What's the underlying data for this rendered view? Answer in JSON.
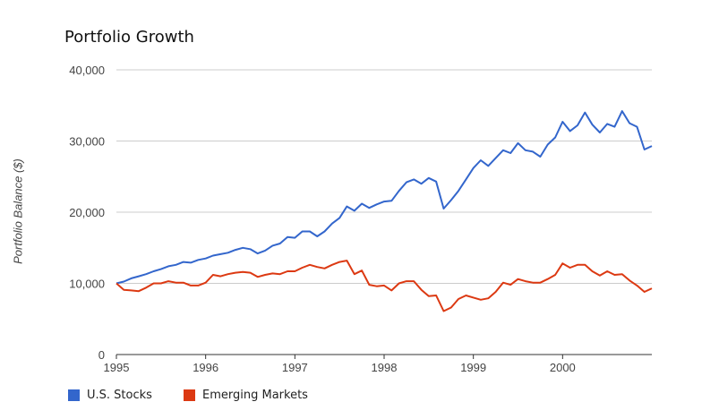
{
  "chart_data": {
    "type": "line",
    "title": "Portfolio Growth",
    "xlabel": "",
    "ylabel": "Portfolio Balance ($)",
    "x_ticks": [
      "1995",
      "1996",
      "1997",
      "1998",
      "1999",
      "2000"
    ],
    "y_ticks": [
      "0",
      "10,000",
      "20,000",
      "30,000",
      "40,000"
    ],
    "xlim": [
      1995,
      2001
    ],
    "ylim": [
      0,
      40000
    ],
    "grid": true,
    "legend_position": "bottom-left",
    "x": [
      1995.0,
      1995.083,
      1995.167,
      1995.25,
      1995.333,
      1995.417,
      1995.5,
      1995.583,
      1995.667,
      1995.75,
      1995.833,
      1995.917,
      1996.0,
      1996.083,
      1996.167,
      1996.25,
      1996.333,
      1996.417,
      1996.5,
      1996.583,
      1996.667,
      1996.75,
      1996.833,
      1996.917,
      1997.0,
      1997.083,
      1997.167,
      1997.25,
      1997.333,
      1997.417,
      1997.5,
      1997.583,
      1997.667,
      1997.75,
      1997.833,
      1997.917,
      1998.0,
      1998.083,
      1998.167,
      1998.25,
      1998.333,
      1998.417,
      1998.5,
      1998.583,
      1998.667,
      1998.75,
      1998.833,
      1998.917,
      1999.0,
      1999.083,
      1999.167,
      1999.25,
      1999.333,
      1999.417,
      1999.5,
      1999.583,
      1999.667,
      1999.75,
      1999.833,
      1999.917,
      2000.0,
      2000.083,
      2000.167,
      2000.25,
      2000.333,
      2000.417,
      2000.5,
      2000.583,
      2000.667,
      2000.75,
      2000.833,
      2000.917,
      2001.0
    ],
    "series": [
      {
        "name": "U.S. Stocks",
        "color": "#3366cc",
        "values": [
          10000,
          10250,
          10700,
          11000,
          11300,
          11700,
          12000,
          12400,
          12600,
          13000,
          12900,
          13300,
          13500,
          13900,
          14100,
          14300,
          14700,
          15000,
          14800,
          14200,
          14600,
          15300,
          15600,
          16500,
          16400,
          17300,
          17300,
          16600,
          17300,
          18400,
          19200,
          20800,
          20200,
          21200,
          20600,
          21100,
          21500,
          21600,
          23000,
          24200,
          24600,
          24000,
          24800,
          24300,
          20500,
          21700,
          23000,
          24600,
          26200,
          27300,
          26500,
          27600,
          28700,
          28300,
          29700,
          28700,
          28500,
          27800,
          29500,
          30500,
          32700,
          31400,
          32200,
          34000,
          32300,
          31200,
          32400,
          32000,
          34200,
          32500,
          32000,
          28800,
          29300
        ]
      },
      {
        "name": "Emerging Markets",
        "color": "#dc3912",
        "values": [
          10000,
          9100,
          9000,
          8900,
          9400,
          10000,
          10000,
          10300,
          10100,
          10100,
          9700,
          9700,
          10100,
          11200,
          11000,
          11300,
          11500,
          11600,
          11500,
          10900,
          11200,
          11400,
          11300,
          11700,
          11700,
          12200,
          12600,
          12300,
          12100,
          12600,
          13000,
          13200,
          11300,
          11800,
          9800,
          9600,
          9700,
          9000,
          10000,
          10300,
          10300,
          9100,
          8200,
          8300,
          6100,
          6600,
          7800,
          8300,
          8000,
          7700,
          7900,
          8800,
          10100,
          9800,
          10600,
          10300,
          10100,
          10100,
          10600,
          11200,
          12800,
          12200,
          12600,
          12600,
          11700,
          11100,
          11700,
          11200,
          11300,
          10400,
          9700,
          8800,
          9300
        ]
      }
    ]
  }
}
